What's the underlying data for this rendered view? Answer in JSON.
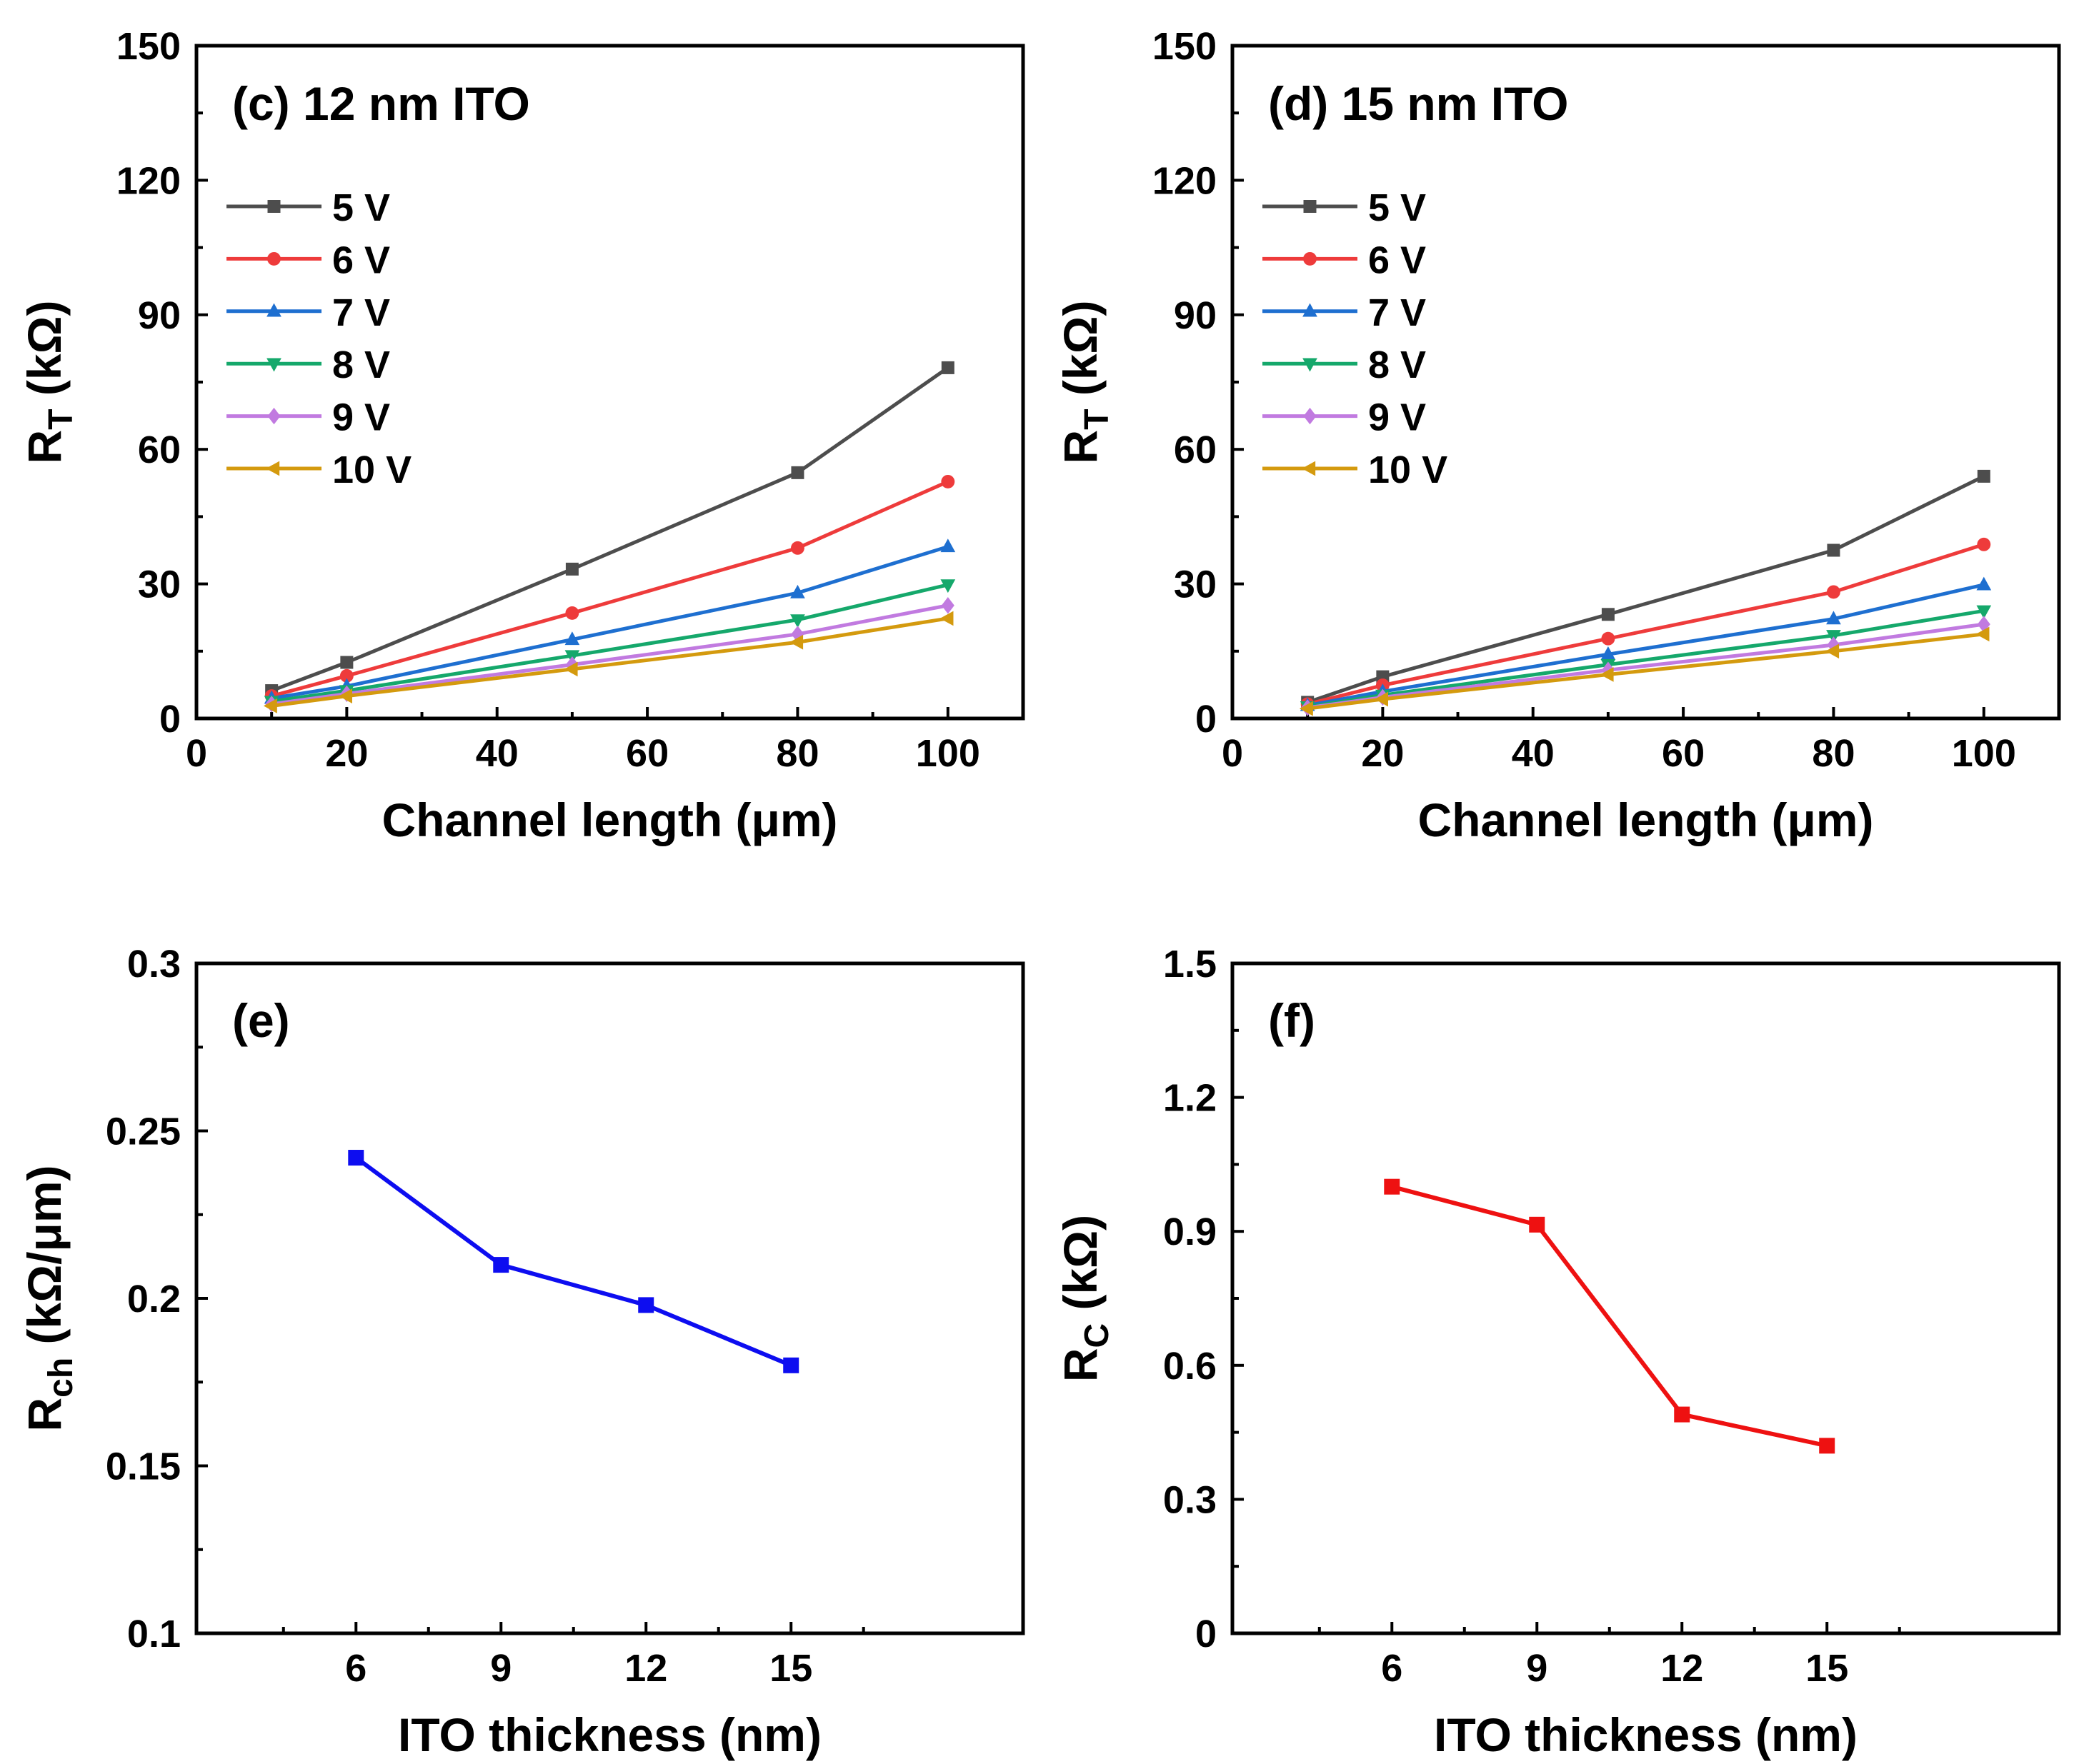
{
  "chart_data": [
    {
      "id": "c",
      "type": "line",
      "panel_label": "(c) 12 nm ITO",
      "xlabel": "Channel length (μm)",
      "ylabel_main": "R",
      "ylabel_sub": "T",
      "ylabel_unit": " (kΩ)",
      "xlim": [
        0,
        110
      ],
      "ylim": [
        0,
        150
      ],
      "xticks": [
        "0",
        "20",
        "40",
        "60",
        "80",
        "100"
      ],
      "yticks": [
        "0",
        "30",
        "60",
        "90",
        "120",
        "150"
      ],
      "x": [
        10,
        20,
        50,
        80,
        100
      ],
      "series": [
        {
          "name": "5 V",
          "color": "#4d4d4d",
          "marker": "square",
          "values": [
            6.2,
            12.5,
            33.3,
            54.8,
            78.2
          ]
        },
        {
          "name": "6 V",
          "color": "#ee3b3b",
          "marker": "circle",
          "values": [
            5.0,
            9.5,
            23.5,
            38.0,
            52.8
          ]
        },
        {
          "name": "7 V",
          "color": "#1e6fd0",
          "marker": "triangle-up",
          "values": [
            4.5,
            7.2,
            17.6,
            28.0,
            38.3
          ]
        },
        {
          "name": "8 V",
          "color": "#15a86b",
          "marker": "triangle-down",
          "values": [
            3.8,
            6.2,
            14.0,
            22.0,
            29.8
          ]
        },
        {
          "name": "9 V",
          "color": "#c17ae0",
          "marker": "diamond",
          "values": [
            3.2,
            5.5,
            12.0,
            18.8,
            25.2
          ]
        },
        {
          "name": "10 V",
          "color": "#d49a0e",
          "marker": "triangle-left",
          "values": [
            2.8,
            5.0,
            11.0,
            17.0,
            22.3
          ]
        }
      ]
    },
    {
      "id": "d",
      "type": "line",
      "panel_label": "(d) 15 nm ITO",
      "xlabel": "Channel length (μm)",
      "ylabel_main": "R",
      "ylabel_sub": "T",
      "ylabel_unit": " (kΩ)",
      "xlim": [
        0,
        110
      ],
      "ylim": [
        0,
        150
      ],
      "xticks": [
        "0",
        "20",
        "40",
        "60",
        "80",
        "100"
      ],
      "yticks": [
        "0",
        "30",
        "60",
        "90",
        "120",
        "150"
      ],
      "x": [
        10,
        20,
        50,
        80,
        100
      ],
      "series": [
        {
          "name": "5 V",
          "color": "#4d4d4d",
          "marker": "square",
          "values": [
            3.6,
            9.3,
            23.2,
            37.5,
            54.0
          ]
        },
        {
          "name": "6 V",
          "color": "#ee3b3b",
          "marker": "circle",
          "values": [
            3.2,
            7.4,
            17.8,
            28.2,
            38.8
          ]
        },
        {
          "name": "7 V",
          "color": "#1e6fd0",
          "marker": "triangle-up",
          "values": [
            2.9,
            6.0,
            14.3,
            22.2,
            29.8
          ]
        },
        {
          "name": "8 V",
          "color": "#15a86b",
          "marker": "triangle-down",
          "values": [
            2.6,
            5.2,
            12.0,
            18.5,
            24.0
          ]
        },
        {
          "name": "9 V",
          "color": "#c17ae0",
          "marker": "diamond",
          "values": [
            2.4,
            4.7,
            10.8,
            16.4,
            21.0
          ]
        },
        {
          "name": "10 V",
          "color": "#d49a0e",
          "marker": "triangle-left",
          "values": [
            2.2,
            4.3,
            9.8,
            15.0,
            18.8
          ]
        }
      ]
    },
    {
      "id": "e",
      "type": "line",
      "panel_label": "(e)",
      "xlabel": "ITO thickness (nm)",
      "ylabel_main": "R",
      "ylabel_sub": "ch",
      "ylabel_unit": " (kΩ/μm)",
      "xlim": [
        2.7,
        19.8
      ],
      "ylim": [
        0.1,
        0.3
      ],
      "xticks": [
        "6",
        "9",
        "12",
        "15"
      ],
      "yticks": [
        "0.1",
        "0.15",
        "0.2",
        "0.25",
        "0.3"
      ],
      "x": [
        6,
        9,
        12,
        15
      ],
      "series": [
        {
          "name": "Rch",
          "color": "#0d0df0",
          "marker": "square",
          "values": [
            0.242,
            0.21,
            0.198,
            0.18
          ]
        }
      ]
    },
    {
      "id": "f",
      "type": "line",
      "panel_label": "(f)",
      "xlabel": "ITO thickness (nm)",
      "ylabel_main": "R",
      "ylabel_sub": "C",
      "ylabel_unit": " (kΩ)",
      "xlim": [
        2.7,
        19.8
      ],
      "ylim": [
        0,
        1.5
      ],
      "xticks": [
        "6",
        "9",
        "12",
        "15"
      ],
      "yticks": [
        "0",
        "0.3",
        "0.6",
        "0.9",
        "1.2",
        "1.5"
      ],
      "x": [
        6,
        9,
        12,
        15
      ],
      "series": [
        {
          "name": "Rc",
          "color": "#ee1111",
          "marker": "square",
          "values": [
            1.0,
            0.915,
            0.49,
            0.42
          ]
        }
      ]
    }
  ]
}
